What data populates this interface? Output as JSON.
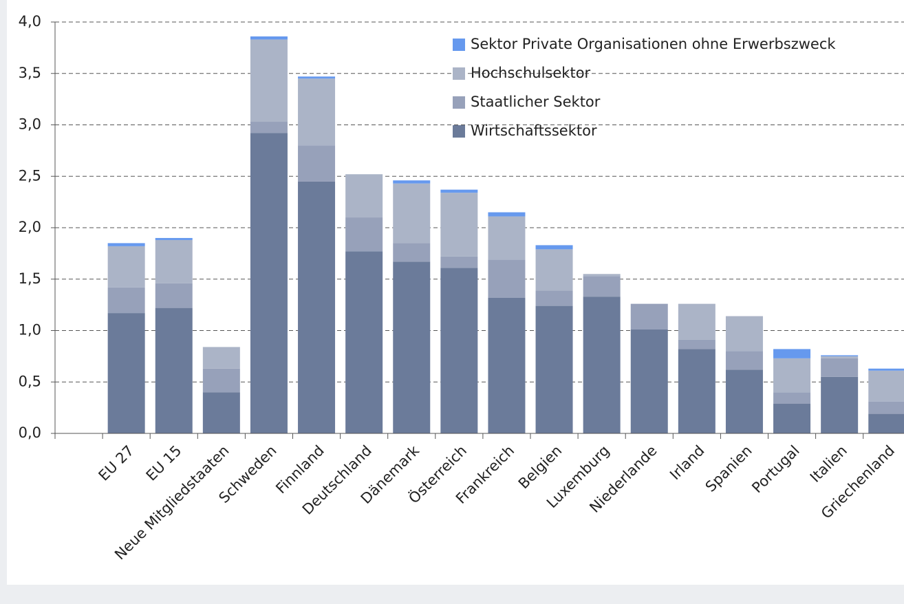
{
  "chart_data": {
    "type": "bar",
    "stacked": true,
    "categories": [
      "EU 27",
      "EU 15",
      "Neue Mitgliedstaaten",
      "Schweden",
      "Finnland",
      "Deutschland",
      "Dänemark",
      "Österreich",
      "Frankreich",
      "Belgien",
      "Luxemburg",
      "Niederlande",
      "Irland",
      "Spanien",
      "Portugal",
      "Italien",
      "Griechenland"
    ],
    "series": [
      {
        "name": "Wirtschaftssektor",
        "color": "#6b7b9a",
        "values": [
          1.17,
          1.22,
          0.4,
          2.92,
          2.45,
          1.77,
          1.67,
          1.61,
          1.32,
          1.24,
          1.33,
          1.01,
          0.82,
          0.62,
          0.29,
          0.55,
          0.19
        ]
      },
      {
        "name": "Staatlicher Sektor",
        "color": "#97a1ba",
        "values": [
          0.25,
          0.24,
          0.23,
          0.11,
          0.35,
          0.33,
          0.18,
          0.11,
          0.37,
          0.15,
          0.2,
          0.25,
          0.09,
          0.18,
          0.11,
          0.18,
          0.12
        ]
      },
      {
        "name": " Hochschulsektor",
        "color": "#abb4c7",
        "values": [
          0.4,
          0.42,
          0.21,
          0.8,
          0.65,
          0.42,
          0.58,
          0.62,
          0.42,
          0.4,
          0.02,
          0,
          0.35,
          0.34,
          0.33,
          0.02,
          0.3
        ]
      },
      {
        "name": "Sektor Private Organisationen ohne Erwerbszweck",
        "color": "#6699ee",
        "values": [
          0.03,
          0.02,
          0,
          0.03,
          0.02,
          0,
          0.03,
          0.03,
          0.04,
          0.04,
          0,
          0,
          0,
          0,
          0.09,
          0.01,
          0.02
        ]
      }
    ],
    "ylim": [
      0,
      4.0
    ],
    "yticks": [
      {
        "value": 0,
        "label": "0,0"
      },
      {
        "value": 0.5,
        "label": "0,5"
      },
      {
        "value": 1.0,
        "label": "1,0"
      },
      {
        "value": 1.5,
        "label": "1,5"
      },
      {
        "value": 2.0,
        "label": "2,0"
      },
      {
        "value": 2.5,
        "label": "2,5"
      },
      {
        "value": 3.0,
        "label": "3,0"
      },
      {
        "value": 3.5,
        "label": "3,5"
      },
      {
        "value": 4.0,
        "label": "4,0"
      }
    ],
    "grid": true,
    "legend": "top-right"
  }
}
